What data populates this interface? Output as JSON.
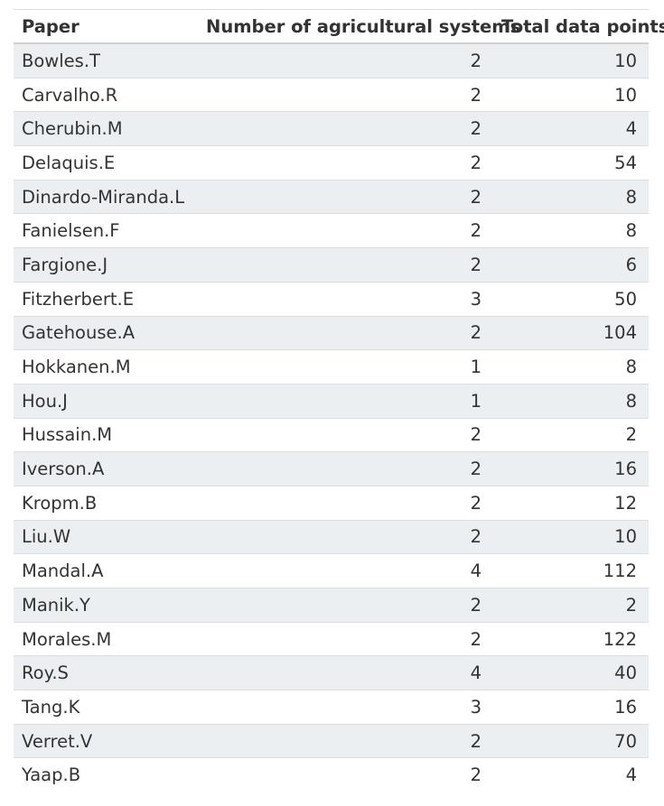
{
  "table": {
    "headers": [
      "Paper",
      "Number of agricultural systems",
      "Total data points"
    ],
    "rows": [
      [
        "Bowles.T",
        "2",
        "10"
      ],
      [
        "Carvalho.R",
        "2",
        "10"
      ],
      [
        "Cherubin.M",
        "2",
        "4"
      ],
      [
        "Delaquis.E",
        "2",
        "54"
      ],
      [
        "Dinardo-Miranda.L",
        "2",
        "8"
      ],
      [
        "Fanielsen.F",
        "2",
        "8"
      ],
      [
        "Fargione.J",
        "2",
        "6"
      ],
      [
        "Fitzherbert.E",
        "3",
        "50"
      ],
      [
        "Gatehouse.A",
        "2",
        "104"
      ],
      [
        "Hokkanen.M",
        "1",
        "8"
      ],
      [
        "Hou.J",
        "1",
        "8"
      ],
      [
        "Hussain.M",
        "2",
        "2"
      ],
      [
        "Iverson.A",
        "2",
        "16"
      ],
      [
        "Kropm.B",
        "2",
        "12"
      ],
      [
        "Liu.W",
        "2",
        "10"
      ],
      [
        "Mandal.A",
        "4",
        "112"
      ],
      [
        "Manik.Y",
        "2",
        "2"
      ],
      [
        "Morales.M",
        "2",
        "122"
      ],
      [
        "Roy.S",
        "4",
        "40"
      ],
      [
        "Tang.K",
        "3",
        "16"
      ],
      [
        "Verret.V",
        "2",
        "70"
      ],
      [
        "Yaap.B",
        "2",
        "4"
      ]
    ]
  },
  "colors": {
    "stripe": "#eceff1",
    "text": "#333333",
    "rule": "#dddddd"
  }
}
